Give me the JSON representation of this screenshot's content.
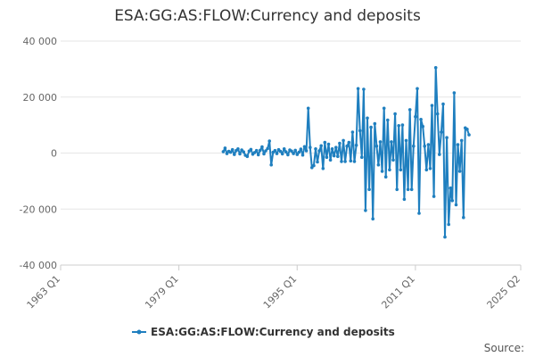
{
  "chart_data": {
    "type": "line",
    "title": "ESA:GG:AS:FLOW:Currency and deposits",
    "xlabel": "",
    "ylabel": "",
    "x_ticks": [
      "1963 Q1",
      "1979 Q1",
      "1995 Q1",
      "2011 Q1",
      "2025 Q2"
    ],
    "y_ticks": [
      "40 000",
      "20 000",
      "0",
      "-20 000",
      "-40 000"
    ],
    "y_tick_values": [
      40000,
      20000,
      0,
      -20000,
      -40000
    ],
    "ylim": [
      -40000,
      40000
    ],
    "xlim": [
      "1963 Q1",
      "2025 Q2"
    ],
    "grid": "horizontal",
    "legend_position": "bottom",
    "series": [
      {
        "name": "ESA:GG:AS:FLOW:Currency and deposits",
        "color": "#1f7fbf",
        "x_start": "1985 Q1",
        "values": [
          500,
          1800,
          -200,
          600,
          300,
          1200,
          -500,
          900,
          1500,
          -300,
          1100,
          400,
          -800,
          -1200,
          700,
          1300,
          -400,
          200,
          900,
          -600,
          1000,
          2200,
          -300,
          800,
          1600,
          4300,
          -4200,
          300,
          900,
          -200,
          1200,
          600,
          -300,
          1500,
          400,
          -600,
          1100,
          700,
          -200,
          1000,
          -500,
          300,
          1400,
          -700,
          2300,
          800,
          16000,
          2000,
          -5200,
          -4500,
          1500,
          -3200,
          800,
          2600,
          -5500,
          3800,
          -1500,
          3200,
          -2500,
          1500,
          -1000,
          2000,
          -1200,
          3500,
          -3000,
          4500,
          -3000,
          2500,
          3800,
          -2800,
          7500,
          -3000,
          2800,
          23000,
          8000,
          -1500,
          22800,
          -20500,
          12500,
          -13000,
          9200,
          -23500,
          10500,
          2500,
          -4200,
          4000,
          -6500,
          16000,
          -8500,
          11800,
          -6000,
          4000,
          -2500,
          14000,
          -13000,
          9800,
          -6000,
          10000,
          -16500,
          4500,
          -13000,
          15500,
          -13000,
          2500,
          13000,
          23000,
          -21500,
          12000,
          9500,
          2500,
          -6000,
          3000,
          -5500,
          17000,
          -15500,
          30500,
          14000,
          -500,
          7500,
          17500,
          -30000,
          5500,
          -25500,
          -12500,
          -17000,
          21500,
          -18500,
          3000,
          -6500,
          4500,
          -23000,
          9000,
          8500,
          6500
        ]
      }
    ],
    "legend": [
      "ESA:GG:AS:FLOW:Currency and deposits"
    ],
    "source_label": "Source:"
  }
}
